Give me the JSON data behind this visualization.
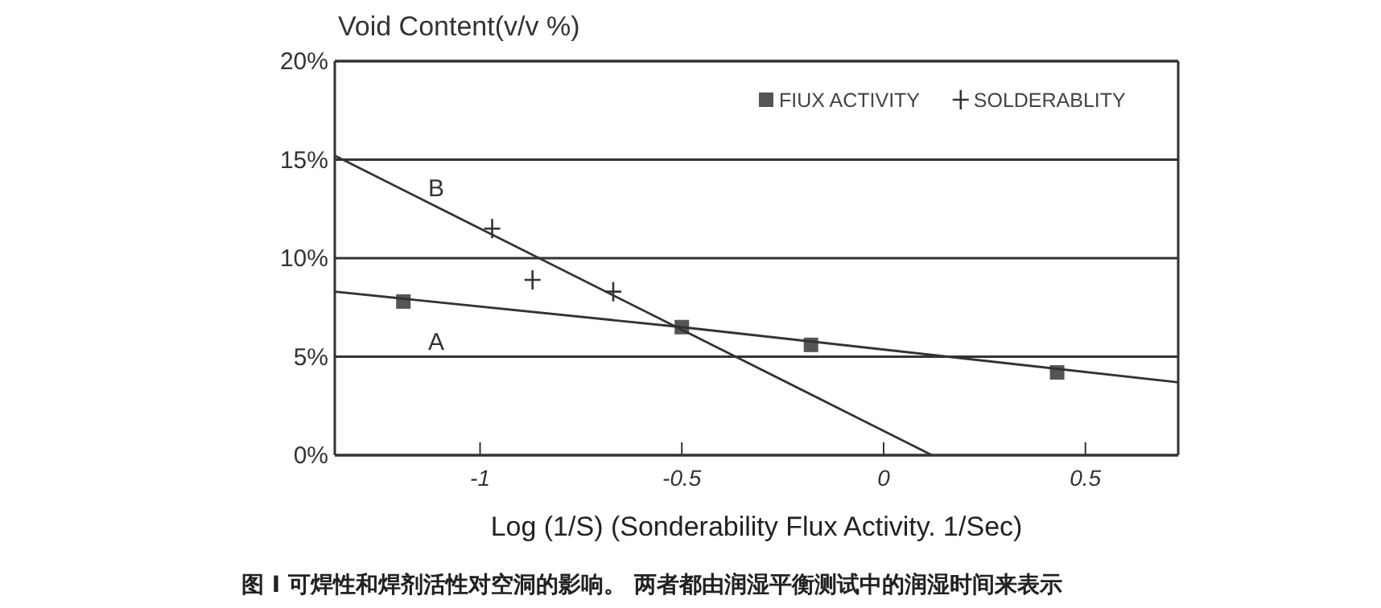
{
  "chart_data": {
    "type": "scatter",
    "ylabel": "Void Content(v/v %)",
    "xlabel": "Log (1/S) (Sonderability Flux Activity. 1/Sec)",
    "xlim": [
      -1.36,
      0.73
    ],
    "xticks": [
      -1,
      -0.5,
      0,
      0.5
    ],
    "ylim": [
      0,
      20
    ],
    "yticks": [
      {
        "value": 0,
        "label": "0%"
      },
      {
        "value": 5,
        "label": "5%"
      },
      {
        "value": 10,
        "label": "10%"
      },
      {
        "value": 15,
        "label": "15%"
      },
      {
        "value": 20,
        "label": "20%"
      }
    ],
    "grid": "y",
    "legend": "top right",
    "series": [
      {
        "name": "FIUX ACTIVITY",
        "marker": "square",
        "color": "#555555",
        "x": [
          -1.19,
          -0.5,
          -0.18,
          0.43
        ],
        "values": [
          7.8,
          6.5,
          5.6,
          4.2
        ]
      },
      {
        "name": "SOLDERABLITY",
        "marker": "cross",
        "color": "#333333",
        "x": [
          -0.97,
          -0.87,
          -0.67
        ],
        "values": [
          11.5,
          8.9,
          8.3
        ]
      },
      {
        "name": "A",
        "type": "line",
        "color": "#333333",
        "x": [
          -1.36,
          -0.5,
          0.73
        ],
        "values": [
          8.3,
          6.5,
          3.7
        ]
      },
      {
        "name": "B",
        "type": "line",
        "color": "#333333",
        "x": [
          -1.36,
          0.12
        ],
        "values": [
          15.2,
          0
        ]
      }
    ],
    "annotations": [
      "图 I 可焊性和焊剂活性对空洞的影响。 两者都由润湿平衡测试中的润湿时间来表示"
    ]
  }
}
